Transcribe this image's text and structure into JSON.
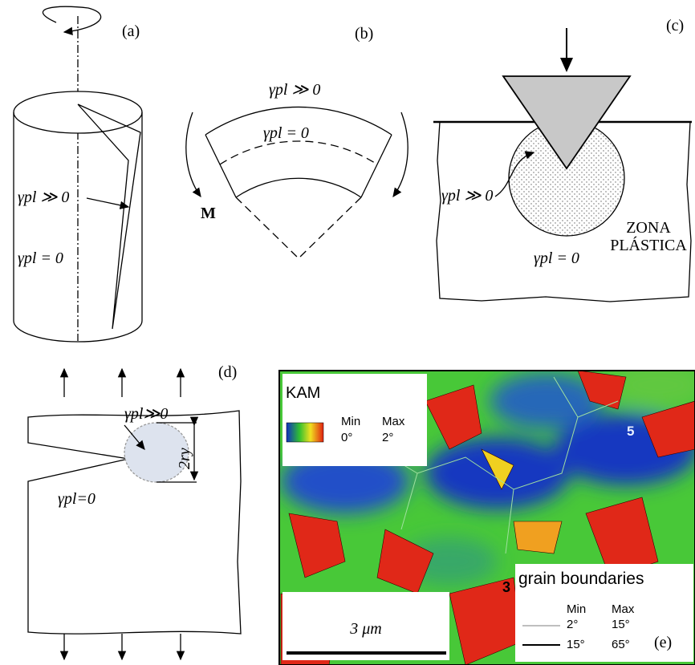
{
  "panels": [
    {
      "label": "(a)",
      "high": "γpl ≫ 0",
      "zero": "γpl = 0"
    },
    {
      "label": "(b)",
      "high": "γpl ≫ 0",
      "zero": "γpl = 0",
      "moment": "M"
    },
    {
      "label": "(c)",
      "high": "γpl ≫ 0",
      "zero": "γpl = 0",
      "zone": [
        "ZONA",
        "PLÁSTICA"
      ]
    },
    {
      "label": "(d)",
      "high": "γpl≫0",
      "zero": "γpl=0",
      "size": "2ry"
    },
    {
      "label": "(e)",
      "kam": {
        "title": "KAM",
        "min": "Min",
        "max": "Max",
        "min_value": "0°",
        "max_value": "2°"
      },
      "grains": [
        "5",
        "3"
      ],
      "boundaries": {
        "title": "grain boundaries",
        "header": [
          "Min",
          "Max"
        ],
        "rows": [
          [
            "2°",
            "15°"
          ],
          [
            "15°",
            "65°"
          ]
        ]
      },
      "scale_bar": "3 μm"
    }
  ]
}
